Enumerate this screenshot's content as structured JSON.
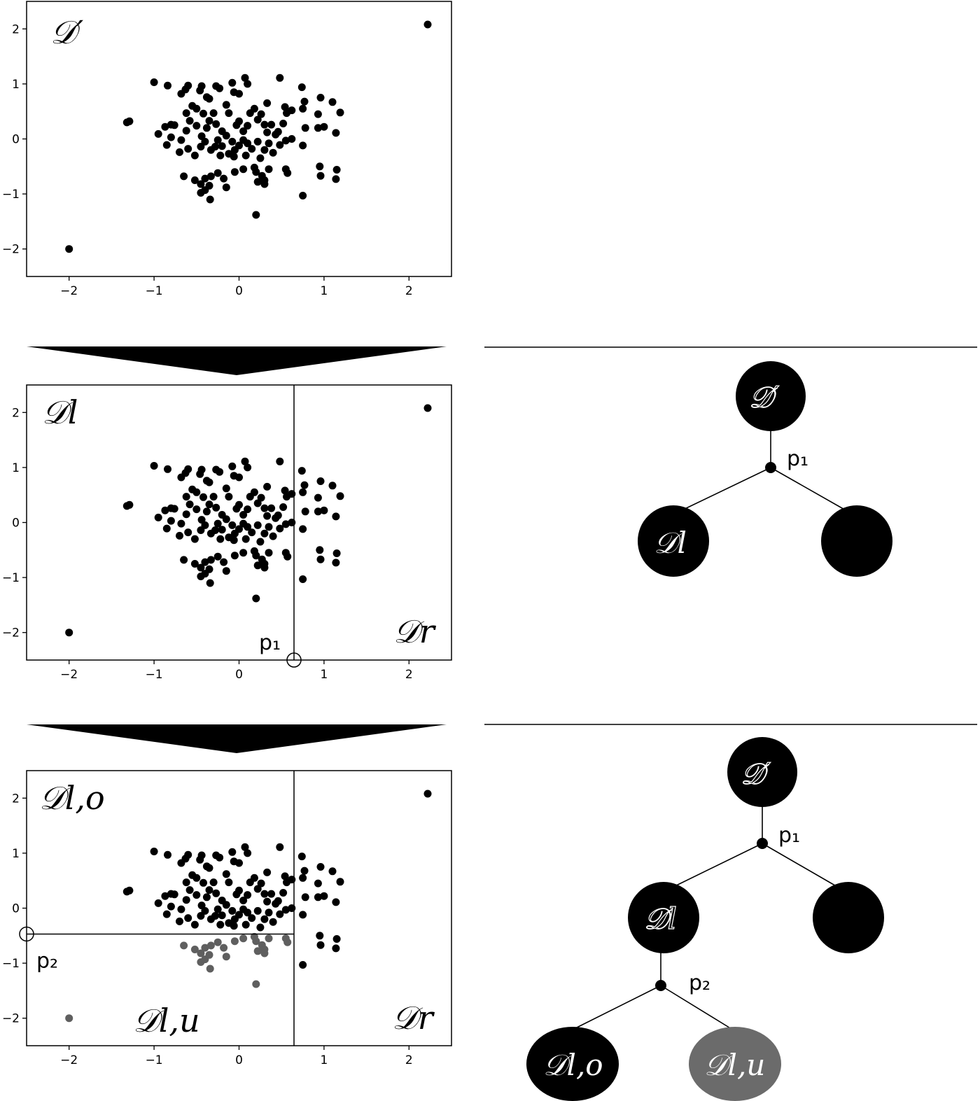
{
  "figure": {
    "panels": [
      {
        "id": "panel-1",
        "region_labels": {
          "top_left": "𝒟′"
        },
        "split_labels": []
      },
      {
        "id": "panel-2",
        "region_labels": {
          "top_left": "𝒟l",
          "bottom_right": "𝒟r"
        },
        "split_labels": [
          {
            "name": "p₁"
          }
        ]
      },
      {
        "id": "panel-3",
        "region_labels": {
          "top_left": "𝒟l,o",
          "bottom_mid": "𝒟l,u",
          "bottom_right": "𝒟r"
        },
        "split_labels": [
          {
            "name": "p₂"
          }
        ]
      }
    ],
    "splits": {
      "p1_x": 0.65,
      "p2_y": -0.47
    },
    "axis": {
      "xlim": [
        -2.5,
        2.5
      ],
      "ylim": [
        -2.5,
        2.5
      ],
      "xticks": [
        -2,
        -1,
        0,
        1,
        2
      ],
      "yticks": [
        -2,
        -1,
        0,
        1,
        2
      ],
      "xtick_labels": [
        "−2",
        "−1",
        "0",
        "1",
        "2"
      ],
      "ytick_labels": [
        "−2",
        "−1",
        "0",
        "1",
        "2"
      ]
    },
    "colors": {
      "point": "#000000",
      "point_lower": "#5f5f5f",
      "node_dark": "#000000",
      "node_gray": "#6b6b6b"
    },
    "points": [
      [
        2.22,
        2.08
      ],
      [
        -2.0,
        -2.0
      ],
      [
        0.2,
        -1.38
      ],
      [
        -0.34,
        -1.1
      ],
      [
        0.75,
        -1.03
      ],
      [
        -1.32,
        0.3
      ],
      [
        -1.29,
        0.32
      ],
      [
        -1.0,
        1.03
      ],
      [
        -0.84,
        0.97
      ],
      [
        -0.6,
        0.97
      ],
      [
        -0.44,
        0.96
      ],
      [
        -0.27,
        0.96
      ],
      [
        -0.23,
        0.92
      ],
      [
        -0.08,
        1.02
      ],
      [
        0.07,
        1.11
      ],
      [
        0.1,
        1.0
      ],
      [
        0.48,
        1.11
      ],
      [
        0.74,
        0.94
      ],
      [
        -0.95,
        0.09
      ],
      [
        -0.87,
        0.22
      ],
      [
        -0.8,
        0.26
      ],
      [
        -0.76,
        0.25
      ],
      [
        -0.85,
        -0.11
      ],
      [
        -0.8,
        0.03
      ],
      [
        -0.68,
        0.82
      ],
      [
        -0.63,
        0.9
      ],
      [
        -0.62,
        0.47
      ],
      [
        -0.55,
        0.6
      ],
      [
        -0.5,
        0.55
      ],
      [
        -0.46,
        0.88
      ],
      [
        -0.38,
        0.76
      ],
      [
        -0.35,
        0.73
      ],
      [
        -0.68,
        -0.02
      ],
      [
        -0.62,
        0.15
      ],
      [
        -0.58,
        0.33
      ],
      [
        -0.5,
        0.24
      ],
      [
        -0.44,
        0.05
      ],
      [
        -0.42,
        0.46
      ],
      [
        -0.38,
        0.2
      ],
      [
        -0.35,
        0.33
      ],
      [
        -0.3,
        0.47
      ],
      [
        -0.27,
        0.27
      ],
      [
        -0.2,
        0.14
      ],
      [
        -0.15,
        0.62
      ],
      [
        -0.12,
        0.47
      ],
      [
        -0.06,
        0.85
      ],
      [
        0.0,
        0.82
      ],
      [
        -0.25,
        -0.02
      ],
      [
        -0.2,
        -0.13
      ],
      [
        -0.15,
        0.06
      ],
      [
        -0.08,
        -0.05
      ],
      [
        -0.03,
        0.25
      ],
      [
        0.0,
        0.32
      ],
      [
        0.05,
        0.14
      ],
      [
        0.1,
        0.24
      ],
      [
        0.13,
        0.47
      ],
      [
        0.18,
        0.55
      ],
      [
        0.22,
        0.35
      ],
      [
        0.3,
        0.26
      ],
      [
        0.33,
        0.12
      ],
      [
        0.38,
        0.26
      ],
      [
        0.43,
        0.08
      ],
      [
        0.46,
        0.13
      ],
      [
        0.52,
        0.28
      ],
      [
        0.56,
        0.47
      ],
      [
        0.62,
        0.52
      ],
      [
        0.33,
        0.65
      ],
      [
        0.26,
        0.45
      ],
      [
        0.54,
        0.58
      ],
      [
        0.35,
        -0.08
      ],
      [
        0.3,
        -0.2
      ],
      [
        0.22,
        -0.05
      ],
      [
        0.15,
        -0.18
      ],
      [
        0.1,
        -0.08
      ],
      [
        0.05,
        -0.02
      ],
      [
        0.0,
        -0.12
      ],
      [
        -0.05,
        -0.2
      ],
      [
        0.4,
        -0.25
      ],
      [
        0.48,
        -0.11
      ],
      [
        0.55,
        -0.03
      ],
      [
        0.62,
        0.0
      ],
      [
        -0.7,
        -0.24
      ],
      [
        -0.6,
        -0.18
      ],
      [
        -0.52,
        -0.3
      ],
      [
        -0.45,
        -0.14
      ],
      [
        -0.4,
        -0.05
      ],
      [
        -0.33,
        -0.2
      ],
      [
        -0.28,
        -0.14
      ],
      [
        -0.22,
        -0.3
      ],
      [
        -0.12,
        -0.27
      ],
      [
        -0.06,
        -0.32
      ],
      [
        0.25,
        -0.35
      ],
      [
        0.08,
        -0.3
      ],
      [
        0.75,
        -0.12
      ],
      [
        0.78,
        0.2
      ],
      [
        0.75,
        0.55
      ],
      [
        0.93,
        0.45
      ],
      [
        0.93,
        0.2
      ],
      [
        1.0,
        0.22
      ],
      [
        1.14,
        0.11
      ],
      [
        0.96,
        0.75
      ],
      [
        1.1,
        0.67
      ],
      [
        1.19,
        0.48
      ],
      [
        0.77,
        0.68
      ],
      [
        0.95,
        -0.5
      ],
      [
        0.96,
        -0.67
      ],
      [
        1.15,
        -0.56
      ],
      [
        1.14,
        -0.73
      ],
      [
        -0.65,
        -0.68
      ],
      [
        -0.52,
        -0.75
      ],
      [
        -0.45,
        -0.82
      ],
      [
        -0.4,
        -0.72
      ],
      [
        -0.4,
        -0.93
      ],
      [
        -0.33,
        -0.68
      ],
      [
        -0.25,
        -0.62
      ],
      [
        -0.18,
        -0.72
      ],
      [
        -0.15,
        -0.88
      ],
      [
        -0.45,
        -0.98
      ],
      [
        -0.35,
        -0.85
      ],
      [
        -0.05,
        -0.6
      ],
      [
        0.05,
        -0.55
      ],
      [
        0.18,
        -0.52
      ],
      [
        0.2,
        -0.6
      ],
      [
        0.27,
        -0.67
      ],
      [
        0.3,
        -0.75
      ],
      [
        0.35,
        -0.55
      ],
      [
        0.22,
        -0.78
      ],
      [
        0.3,
        -0.82
      ],
      [
        0.55,
        -0.55
      ],
      [
        0.57,
        -0.62
      ]
    ],
    "tree1": {
      "root_label": "𝒟′",
      "split_label": "p₁",
      "left_label": "𝒟l",
      "right_label": ""
    },
    "tree2": {
      "root_label": "𝒟′",
      "split1_label": "p₁",
      "left_label": "𝒟l",
      "right_label": "",
      "split2_label": "p₂",
      "left2_label": "𝒟l,o",
      "right2_label": "𝒟l,u"
    }
  }
}
